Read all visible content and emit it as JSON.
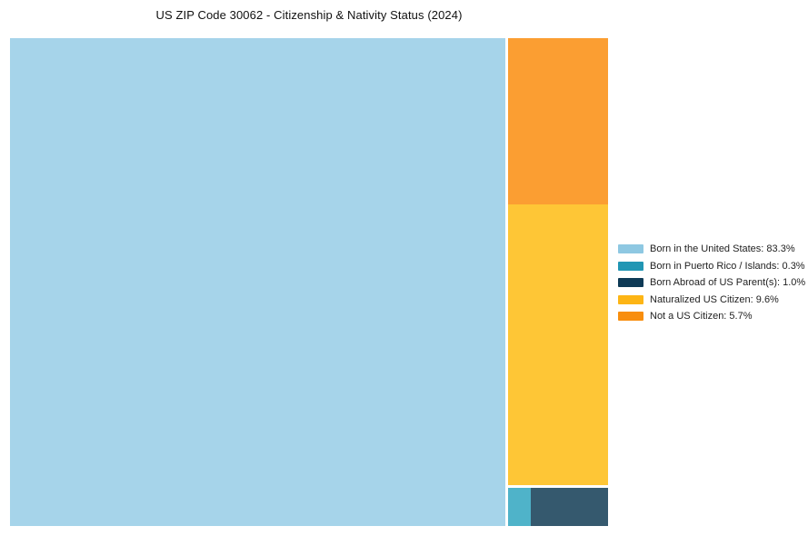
{
  "page": {
    "background_color": "#ffffff"
  },
  "chart_data": {
    "type": "treemap",
    "title": "US ZIP Code 30062 - Citizenship & Nativity Status (2024)",
    "unit": "%",
    "legend_position": "right",
    "grid": false,
    "slices": [
      {
        "label": "Born in the United States",
        "value": 83.3,
        "color": "#a6d4ea",
        "legend_color": "#8ec8e2",
        "legend_label": "Born in the United States: 83.3%"
      },
      {
        "label": "Born in Puerto Rico / Islands",
        "value": 0.3,
        "color": "#4fb3c9",
        "legend_color": "#2196b4",
        "legend_label": "Born in Puerto Rico / Islands: 0.3%"
      },
      {
        "label": "Born Abroad of US Parent(s)",
        "value": 1.0,
        "color": "#35596e",
        "legend_color": "#0e3a56",
        "legend_label": "Born Abroad of US Parent(s): 1.0%"
      },
      {
        "label": "Naturalized US Citizen",
        "value": 9.6,
        "color": "#fec636",
        "legend_color": "#fdb515",
        "legend_label": "Naturalized US Citizen: 9.6%"
      },
      {
        "label": "Not a US Citizen",
        "value": 5.7,
        "color": "#fb9e32",
        "legend_color": "#f88e0e",
        "legend_label": "Not a US Citizen: 5.7%"
      }
    ]
  }
}
